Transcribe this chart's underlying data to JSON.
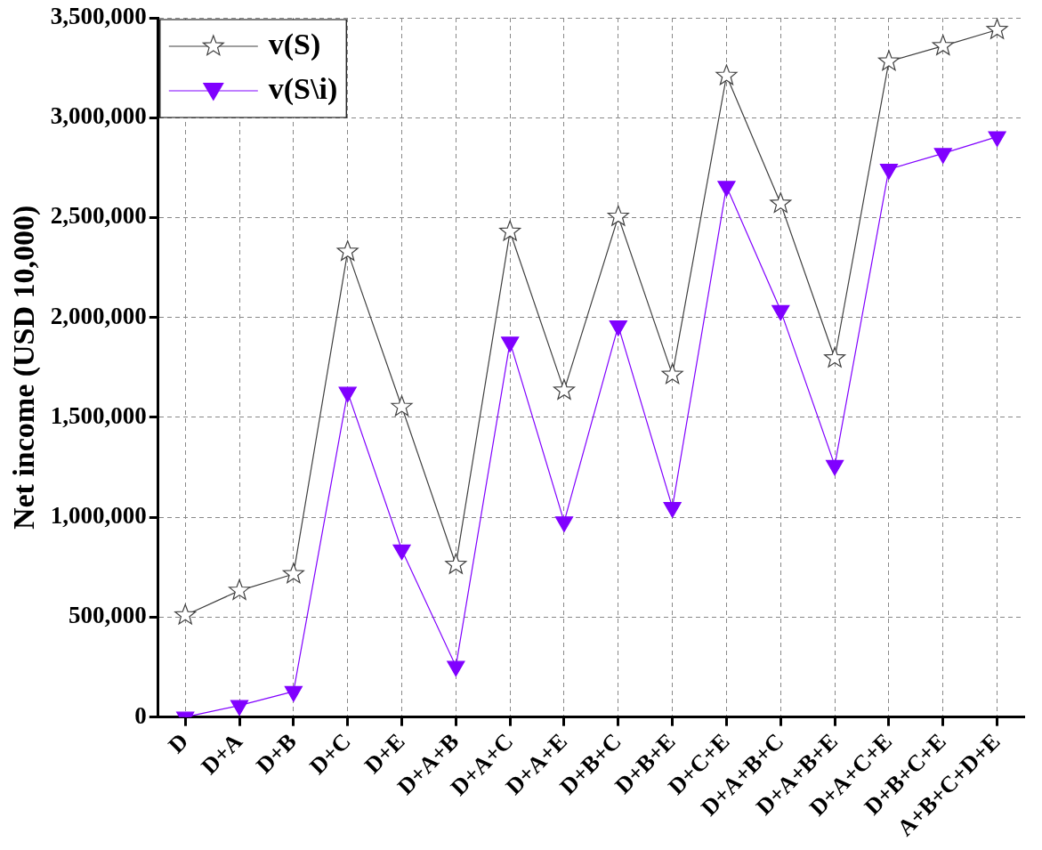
{
  "chart_data": {
    "type": "line",
    "ylabel": "Net income (USD 10,000)",
    "categories": [
      "D",
      "D+A",
      "D+B",
      "D+C",
      "D+E",
      "D+A+B",
      "D+A+C",
      "D+A+E",
      "D+B+C",
      "D+B+E",
      "D+C+E",
      "D+A+B+C",
      "D+A+B+E",
      "D+A+C+E",
      "D+B+C+E",
      "A+B+C+D+E"
    ],
    "series": [
      {
        "name": "v(S)",
        "color": "#404040",
        "marker": "star",
        "values": [
          510000,
          633000,
          716000,
          2330000,
          1553000,
          763000,
          2430000,
          1635000,
          2505000,
          1714000,
          3210000,
          2570000,
          1796000,
          3282000,
          3359000,
          3440000
        ]
      },
      {
        "name": "v(S\\i)",
        "color": "#8000ff",
        "marker": "triangle",
        "values": [
          0,
          58000,
          128000,
          1626000,
          837000,
          254000,
          1877000,
          977000,
          1958000,
          1049000,
          2656000,
          2035000,
          1260000,
          2742000,
          2821000,
          2905000
        ]
      }
    ],
    "ylim": [
      0,
      3500000
    ],
    "yticks": [
      {
        "value": 0,
        "label": "0"
      },
      {
        "value": 500000,
        "label": "500,000"
      },
      {
        "value": 1000000,
        "label": "1,000,000"
      },
      {
        "value": 1500000,
        "label": "1,500,000"
      },
      {
        "value": 2000000,
        "label": "2,000,000"
      },
      {
        "value": 2500000,
        "label": "2,500,000"
      },
      {
        "value": 3000000,
        "label": "3,000,000"
      },
      {
        "value": 3500000,
        "label": "3,500,000"
      }
    ],
    "grid": true,
    "legend": "top left",
    "line_style": "solid"
  }
}
